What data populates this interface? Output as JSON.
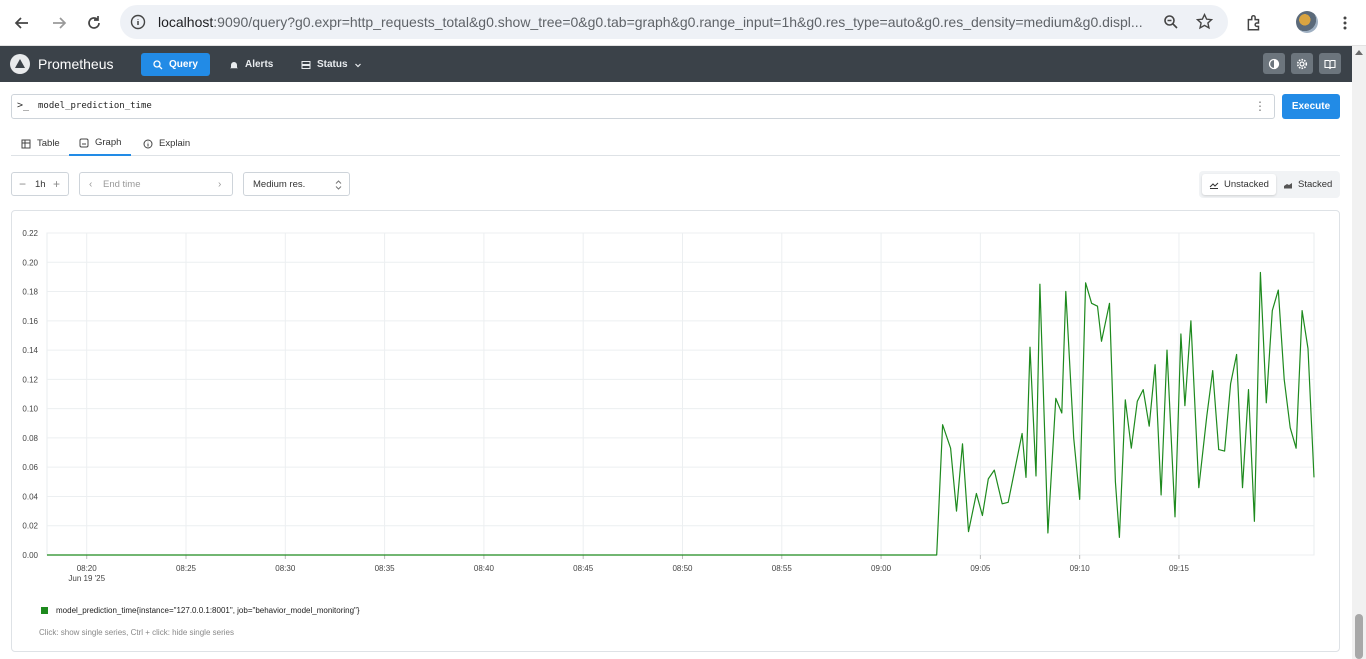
{
  "browser": {
    "url_host": "localhost",
    "url_rest": ":9090/query?g0.expr=http_requests_total&g0.show_tree=0&g0.tab=graph&g0.range_input=1h&g0.res_type=auto&g0.res_density=medium&g0.displ..."
  },
  "navbar": {
    "brand": "Prometheus",
    "items": [
      {
        "label": "Query",
        "icon": "search-icon",
        "active": true
      },
      {
        "label": "Alerts",
        "icon": "bell-icon",
        "active": false
      },
      {
        "label": "Status",
        "icon": "server-icon",
        "active": false
      }
    ]
  },
  "query": {
    "prompt": ">_",
    "expression": "model_prediction_time",
    "execute_label": "Execute"
  },
  "tabs": [
    {
      "label": "Table",
      "icon": "table-icon"
    },
    {
      "label": "Graph",
      "icon": "graph-icon",
      "active": true
    },
    {
      "label": "Explain",
      "icon": "info-icon"
    }
  ],
  "controls": {
    "range": "1h",
    "end_time_placeholder": "End time",
    "resolution": "Medium res.",
    "unstacked_label": "Unstacked",
    "stacked_label": "Stacked"
  },
  "legend": {
    "series_label": "model_prediction_time{instance=\"127.0.0.1:8001\", job=\"behavior_model_monitoring\"}",
    "hint": "Click: show single series, Ctrl + click: hide single series"
  },
  "colors": {
    "series": "#1e8a1e",
    "accent": "#228be6",
    "navbar": "#3b4249"
  },
  "chart_data": {
    "type": "line",
    "x_tick_labels": [
      "08:20",
      "08:25",
      "08:30",
      "08:35",
      "08:40",
      "08:45",
      "08:50",
      "08:55",
      "09:00",
      "09:05",
      "09:10",
      "09:15"
    ],
    "x_date_label": "Jun 19 '25",
    "y_tick_labels": [
      "0.00",
      "0.02",
      "0.04",
      "0.06",
      "0.08",
      "0.10",
      "0.12",
      "0.14",
      "0.16",
      "0.18",
      "0.20",
      "0.22"
    ],
    "ylim": [
      0,
      0.22
    ],
    "x_range_minutes": [
      "08:18",
      "09:18"
    ],
    "grid": true,
    "series": [
      {
        "name": "model_prediction_time{instance=\"127.0.0.1:8001\", job=\"behavior_model_monitoring\"}",
        "points": [
          [
            "08:18",
            0.0
          ],
          [
            "08:30",
            0.0
          ],
          [
            "08:45",
            0.0
          ],
          [
            "09:00",
            0.0
          ],
          [
            "09:02.8",
            0.0
          ],
          [
            "09:03.1",
            0.089
          ],
          [
            "09:03.5",
            0.073
          ],
          [
            "09:03.8",
            0.03
          ],
          [
            "09:04.1",
            0.076
          ],
          [
            "09:04.4",
            0.016
          ],
          [
            "09:04.8",
            0.042
          ],
          [
            "09:05.1",
            0.027
          ],
          [
            "09:05.4",
            0.052
          ],
          [
            "09:05.7",
            0.058
          ],
          [
            "09:06.1",
            0.035
          ],
          [
            "09:06.4",
            0.036
          ],
          [
            "09:06.7",
            0.056
          ],
          [
            "09:07.1",
            0.083
          ],
          [
            "09:07.3",
            0.053
          ],
          [
            "09:07.5",
            0.142
          ],
          [
            "09:07.8",
            0.054
          ],
          [
            "09:08.0",
            0.185
          ],
          [
            "09:08.4",
            0.015
          ],
          [
            "09:08.8",
            0.107
          ],
          [
            "09:09.1",
            0.097
          ],
          [
            "09:09.3",
            0.18
          ],
          [
            "09:09.7",
            0.08
          ],
          [
            "09:10.0",
            0.038
          ],
          [
            "09:10.3",
            0.186
          ],
          [
            "09:10.6",
            0.172
          ],
          [
            "09:10.9",
            0.17
          ],
          [
            "09:11.1",
            0.146
          ],
          [
            "09:11.5",
            0.172
          ],
          [
            "09:11.8",
            0.05
          ],
          [
            "09:12.0",
            0.012
          ],
          [
            "09:12.3",
            0.106
          ],
          [
            "09:12.6",
            0.073
          ],
          [
            "09:12.9",
            0.105
          ],
          [
            "09:13.2",
            0.113
          ],
          [
            "09:13.5",
            0.088
          ],
          [
            "09:13.8",
            0.13
          ],
          [
            "09:14.1",
            0.041
          ],
          [
            "09:14.4",
            0.14
          ],
          [
            "09:14.8",
            0.026
          ],
          [
            "09:15.1",
            0.151
          ],
          [
            "09:15.3",
            0.102
          ],
          [
            "09:15.6",
            0.16
          ],
          [
            "09:16.0",
            0.046
          ],
          [
            "09:16.4",
            0.095
          ],
          [
            "09:16.7",
            0.126
          ],
          [
            "09:17.0",
            0.072
          ],
          [
            "09:17.3",
            0.071
          ],
          [
            "09:17.6",
            0.117
          ],
          [
            "09:17.9",
            0.137
          ],
          [
            "09:18.2",
            0.046
          ],
          [
            "09:18.5",
            0.113
          ],
          [
            "09:18.8",
            0.023
          ],
          [
            "09:19.1",
            0.193
          ],
          [
            "09:19.4",
            0.104
          ],
          [
            "09:19.7",
            0.167
          ],
          [
            "09:20.0",
            0.181
          ],
          [
            "09:20.3",
            0.12
          ],
          [
            "09:20.6",
            0.087
          ],
          [
            "09:20.9",
            0.073
          ],
          [
            "09:21.2",
            0.167
          ],
          [
            "09:21.5",
            0.141
          ],
          [
            "09:21.8",
            0.053
          ]
        ]
      }
    ]
  }
}
